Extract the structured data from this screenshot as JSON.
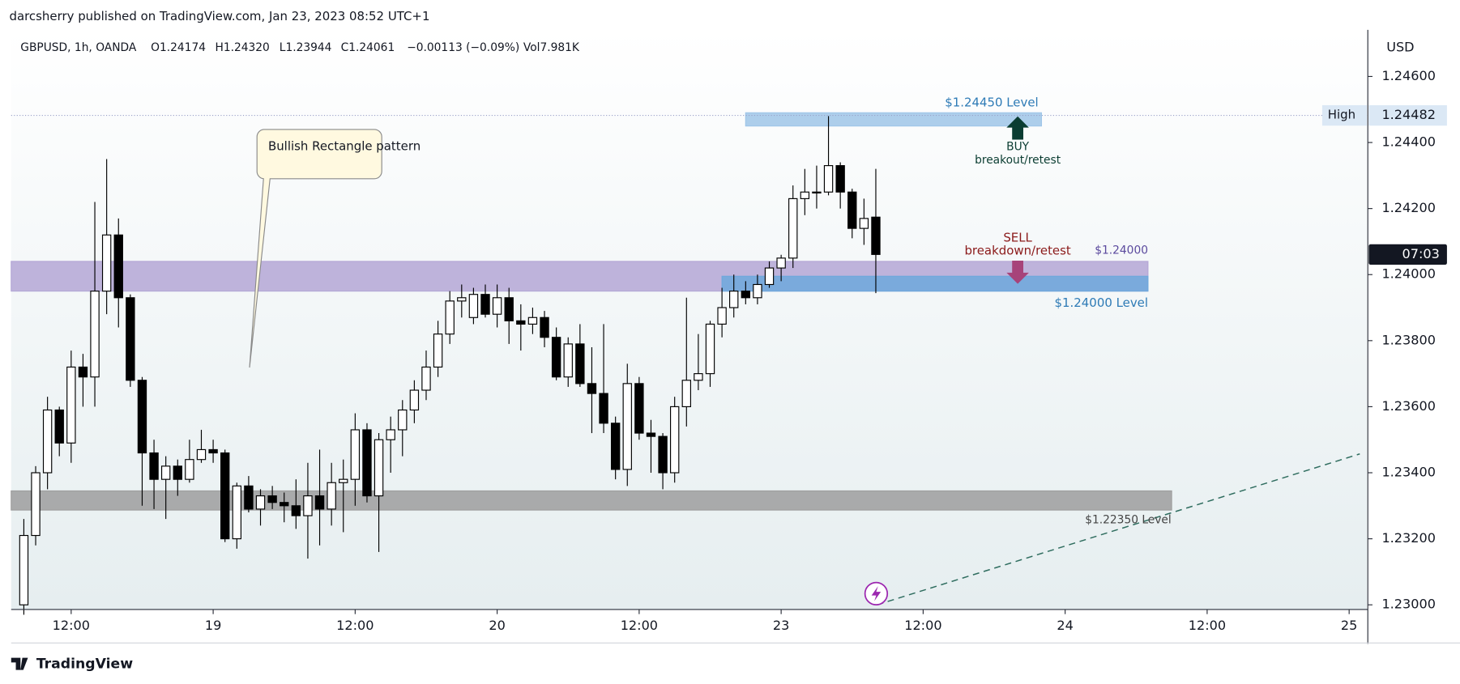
{
  "chart_data": {
    "type": "candlestick",
    "published": "darcsherry published on TradingView.com, Jan 23, 2023 08:52 UTC+1",
    "symbol": "GBPUSD, 1h, OANDA",
    "ohlc_header": [
      "O1.24174",
      "H1.24320",
      "L1.23944",
      "C1.24061",
      "−0.00113 (−0.09%)",
      "Vol7.981K"
    ],
    "currency": "USD",
    "brand": "TradingView",
    "countdown": "07:03",
    "xlim": [
      -17.07,
      97.5
    ],
    "xticks": [
      {
        "value": -12,
        "label": "12:00"
      },
      {
        "value": 0,
        "label": "19"
      },
      {
        "value": 12,
        "label": "12:00"
      },
      {
        "value": 24,
        "label": "20"
      },
      {
        "value": 36,
        "label": "12:00"
      },
      {
        "value": 48,
        "label": "23"
      },
      {
        "value": 60,
        "label": "12:00"
      },
      {
        "value": 72,
        "label": "24"
      },
      {
        "value": 84,
        "label": "12:00"
      },
      {
        "value": 96,
        "label": "25"
      }
    ],
    "ylim": [
      1.22986,
      1.24741
    ],
    "yticks": [
      {
        "value": 1.246,
        "label": "1.24600"
      },
      {
        "value": 1.244,
        "label": "1.24400"
      },
      {
        "value": 1.242,
        "label": "1.24200"
      },
      {
        "value": 1.24,
        "label": "1.24000"
      },
      {
        "value": 1.238,
        "label": "1.23800"
      },
      {
        "value": 1.236,
        "label": "1.23600"
      },
      {
        "value": 1.234,
        "label": "1.23400"
      },
      {
        "value": 1.232,
        "label": "1.23200"
      },
      {
        "value": 1.23,
        "label": "1.23000"
      }
    ],
    "up_color": "#ffffff",
    "down_color": "#000000",
    "x": [
      -16,
      -15,
      -14,
      -13,
      -12,
      -11,
      -10,
      -9,
      -8,
      -7,
      -6,
      -5,
      -4,
      -3,
      -2,
      -1,
      0,
      1,
      2,
      3,
      4,
      5,
      6,
      7,
      8,
      9,
      10,
      11,
      12,
      13,
      14,
      15,
      16,
      17,
      18,
      19,
      20,
      21,
      22,
      23,
      24,
      25,
      26,
      27,
      28,
      29,
      30,
      31,
      32,
      33,
      34,
      35,
      36,
      37,
      38,
      39,
      40,
      41,
      42,
      43,
      44,
      45,
      46,
      47,
      48,
      49,
      50,
      51,
      52,
      53,
      54,
      55,
      56
    ],
    "open": [
      1.23,
      1.2321,
      1.234,
      1.2359,
      1.2349,
      1.2372,
      1.2369,
      1.2395,
      1.2412,
      1.2393,
      1.2368,
      1.2346,
      1.2338,
      1.2342,
      1.2338,
      1.2344,
      1.2347,
      1.2346,
      1.232,
      1.2336,
      1.2329,
      1.2333,
      1.2331,
      1.233,
      1.2327,
      1.2333,
      1.2329,
      1.2337,
      1.2338,
      1.2353,
      1.2333,
      1.235,
      1.2353,
      1.2359,
      1.2365,
      1.2372,
      1.2382,
      1.2392,
      1.2387,
      1.2394,
      1.2388,
      1.2393,
      1.2386,
      1.2385,
      1.2387,
      1.2381,
      1.2369,
      1.2379,
      1.2367,
      1.2364,
      1.2355,
      1.2341,
      1.2367,
      1.2352,
      1.2351,
      1.234,
      1.236,
      1.2368,
      1.237,
      1.2385,
      1.239,
      1.2395,
      1.2393,
      1.2397,
      1.2402,
      1.2405,
      1.2423,
      1.2425,
      1.2425,
      1.2433,
      1.2425,
      1.2414,
      1.24174
    ],
    "high": [
      1.2326,
      1.2342,
      1.2363,
      1.236,
      1.2377,
      1.2376,
      1.2422,
      1.2435,
      1.2417,
      1.2394,
      1.2369,
      1.235,
      1.2345,
      1.2344,
      1.235,
      1.2353,
      1.235,
      1.2347,
      1.2337,
      1.2339,
      1.2335,
      1.2336,
      1.2334,
      1.2338,
      1.2343,
      1.2347,
      1.2343,
      1.2344,
      1.2358,
      1.2355,
      1.2352,
      1.2357,
      1.2362,
      1.2368,
      1.2377,
      1.2386,
      1.2395,
      1.2397,
      1.2396,
      1.2397,
      1.2397,
      1.2396,
      1.2391,
      1.239,
      1.2389,
      1.2384,
      1.2381,
      1.2385,
      1.2378,
      1.2385,
      1.2357,
      1.2373,
      1.2369,
      1.2356,
      1.2352,
      1.2363,
      1.2393,
      1.2382,
      1.2386,
      1.2396,
      1.24,
      1.2398,
      1.24,
      1.2404,
      1.2406,
      1.2427,
      1.2432,
      1.2433,
      1.2448,
      1.2434,
      1.2426,
      1.2423,
      1.2432
    ],
    "low": [
      1.2297,
      1.2318,
      1.2335,
      1.2345,
      1.2343,
      1.236,
      1.236,
      1.2388,
      1.2384,
      1.2366,
      1.233,
      1.2329,
      1.2326,
      1.2333,
      1.2337,
      1.2343,
      1.2343,
      1.2319,
      1.2317,
      1.2328,
      1.2324,
      1.2329,
      1.2325,
      1.2323,
      1.2314,
      1.2318,
      1.2324,
      1.2322,
      1.233,
      1.2331,
      1.2316,
      1.234,
      1.2345,
      1.2355,
      1.2362,
      1.2369,
      1.2379,
      1.2387,
      1.2385,
      1.2387,
      1.2384,
      1.2379,
      1.2377,
      1.2382,
      1.2378,
      1.2368,
      1.2366,
      1.2366,
      1.2352,
      1.2352,
      1.2338,
      1.2336,
      1.235,
      1.234,
      1.2335,
      1.2337,
      1.2354,
      1.2365,
      1.2366,
      1.2381,
      1.2387,
      1.2391,
      1.2391,
      1.2396,
      1.2398,
      1.2402,
      1.2418,
      1.242,
      1.2424,
      1.242,
      1.2411,
      1.2409,
      1.23944
    ],
    "close": [
      1.2321,
      1.234,
      1.2359,
      1.2349,
      1.2372,
      1.2369,
      1.2395,
      1.2412,
      1.2393,
      1.2368,
      1.2346,
      1.2338,
      1.2342,
      1.2338,
      1.2344,
      1.2347,
      1.2346,
      1.232,
      1.2336,
      1.2329,
      1.2333,
      1.2331,
      1.233,
      1.2327,
      1.2333,
      1.2329,
      1.2337,
      1.2338,
      1.2353,
      1.2333,
      1.235,
      1.2353,
      1.2359,
      1.2365,
      1.2372,
      1.2382,
      1.2392,
      1.2393,
      1.2394,
      1.2388,
      1.2393,
      1.2386,
      1.2385,
      1.2387,
      1.2381,
      1.2369,
      1.2379,
      1.2367,
      1.2364,
      1.2355,
      1.2341,
      1.2367,
      1.2352,
      1.2351,
      1.234,
      1.236,
      1.2368,
      1.237,
      1.2385,
      1.239,
      1.2395,
      1.2393,
      1.2397,
      1.2402,
      1.2405,
      1.2423,
      1.2425,
      1.2425,
      1.2433,
      1.2425,
      1.2414,
      1.2417,
      1.24061
    ],
    "high_marker": {
      "label": "High",
      "value": 1.24482,
      "price_label": "1.24482"
    },
    "zones": [
      {
        "ylim": [
          1.2395,
          1.2404
        ],
        "xlim": [
          -17.07,
          79
        ],
        "color": "#b4a7d6"
      },
      {
        "ylim": [
          1.23287,
          1.23345
        ],
        "xlim": [
          -17.07,
          81
        ],
        "color": "#9e9e9e"
      },
      {
        "ylim": [
          1.2445,
          1.2449
        ],
        "xlim": [
          45,
          70
        ],
        "color": "#9fc5e8"
      },
      {
        "ylim": [
          1.2395,
          1.23995
        ],
        "xlim": [
          43,
          79
        ],
        "color": "#6fa8dc"
      }
    ],
    "trendline": {
      "x": [
        56.1,
        96.9
      ],
      "y": [
        1.23,
        1.23457
      ]
    },
    "annotations": {
      "callout": "Bullish Rectangle pattern",
      "level_top": "$1.24450 Level",
      "buy": "BUY",
      "buy_sub": "breakout/retest",
      "sell": "SELL",
      "sell_sub": "breakdown/retest",
      "price_note": "$1.24000",
      "level_mid": "$1.24000 Level",
      "level_low": "$1.22350 Level"
    }
  }
}
